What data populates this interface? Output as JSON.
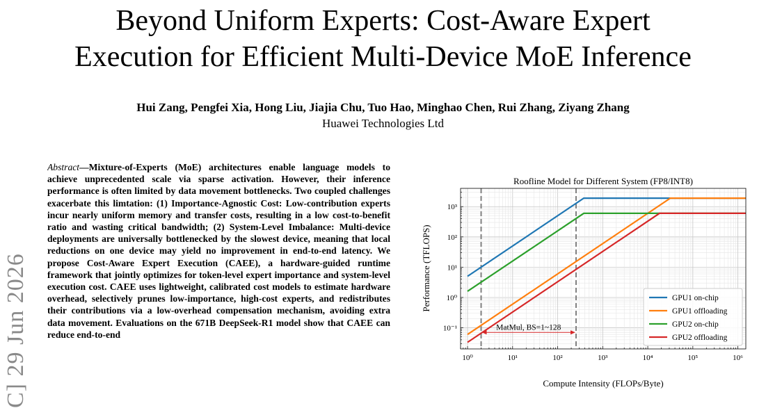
{
  "paper": {
    "title_line1": "Beyond Uniform Experts: Cost-Aware Expert",
    "title_line2": "Execution for Efficient Multi-Device MoE Inference",
    "authors": "Hui Zang, Pengfei Xia, Hong Liu, Jiajia Chu, Tuo Hao, Minghao Chen, Rui Zhang, Ziyang Zhang",
    "affiliation": "Huawei Technologies Ltd",
    "arxiv_stamp": "C] 29 Jun 2026",
    "abstract_label": "Abstract",
    "abstract_dash": "—",
    "abstract_body": "Mixture-of-Experts (MoE) architectures enable language models to achieve unprecedented scale via sparse activation. However, their inference performance is often limited by data movement bottlenecks. Two coupled challenges exacerbate this limtation: (1) Importance-Agnostic Cost: Low-contribution experts incur nearly uniform memory and transfer costs, resulting in a low cost-to-benefit ratio and wasting critical bandwidth; (2) System-Level Imbalance: Multi-device deployments are universally bottlenecked by the slowest device, meaning that local reductions on one device may yield no improvement in end-to-end latency. We propose Cost-Aware Expert Execution (CAEE), a hardware-guided runtime framework that jointly optimizes for token-level expert importance and system-level execution cost. CAEE uses lightweight, calibrated cost models to estimate hardware overhead, selectively prunes low-importance, high-cost experts, and redistributes their contributions via a low-overhead compensation mechanism, avoiding extra data movement. Evaluations on the 671B DeepSeek-R1 model show that CAEE can reduce end-to-end"
  },
  "chart_data": {
    "type": "line",
    "title": "Roofline Model for Different System (FP8/INT8)",
    "xlabel": "Compute Intensity (FLOPs/Byte)",
    "ylabel": "Performance (TFLOPS)",
    "x_scale": "log",
    "y_scale": "log",
    "xlim": [
      0.7,
      1500000
    ],
    "ylim": [
      0.02,
      4000
    ],
    "x_ticks": [
      1,
      10,
      100,
      1000,
      10000,
      100000,
      1000000
    ],
    "x_tick_labels": [
      "10⁰",
      "10¹",
      "10²",
      "10³",
      "10⁴",
      "10⁵",
      "10⁶"
    ],
    "y_ticks": [
      0.1,
      1,
      10,
      100,
      1000
    ],
    "y_tick_labels": [
      "10⁻¹",
      "10⁰",
      "10¹",
      "10²",
      "10³"
    ],
    "grid": true,
    "legend_position": "bottom-right",
    "series": [
      {
        "name": "GPU1 on-chip",
        "color": "#1f77b4",
        "x": [
          1,
          380,
          1500000
        ],
        "y": [
          5,
          1900,
          1900
        ]
      },
      {
        "name": "GPU1 offloading",
        "color": "#ff7f0e",
        "x": [
          1,
          31700,
          1500000
        ],
        "y": [
          0.06,
          1900,
          1900
        ]
      },
      {
        "name": "GPU2 on-chip",
        "color": "#2ca02c",
        "x": [
          1,
          380,
          1500000
        ],
        "y": [
          1.6,
          600,
          600
        ]
      },
      {
        "name": "GPU2 offloading",
        "color": "#d62728",
        "x": [
          1,
          18200,
          1500000
        ],
        "y": [
          0.033,
          600,
          600
        ]
      }
    ],
    "vlines": [
      {
        "x": 2,
        "color": "#808080"
      },
      {
        "x": 256,
        "color": "#808080"
      }
    ],
    "annotation": {
      "text": "MatMul, BS=1~128",
      "x_from": 2,
      "x_to": 256,
      "y": 0.07,
      "color": "#d62728"
    }
  }
}
